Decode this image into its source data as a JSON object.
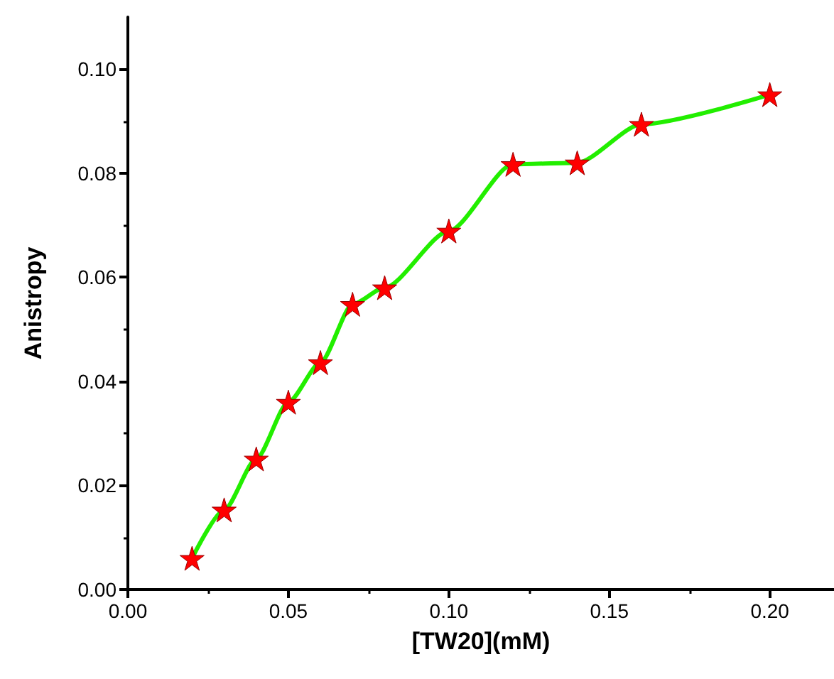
{
  "chart_data": {
    "type": "line",
    "xlabel": "[TW20](mM)",
    "ylabel": "Anistropy",
    "x": [
      0.02,
      0.03,
      0.04,
      0.05,
      0.06,
      0.07,
      0.08,
      0.1,
      0.12,
      0.14,
      0.16,
      0.2
    ],
    "series": [
      {
        "color": "#22ee00",
        "colors": [
          "#ff0000",
          "#ff0000",
          "#ff0000",
          "#ff0000",
          "#ff0000",
          "#ff0000",
          "#ff0000",
          "#ff0000",
          "#ff0000",
          "#ff0000",
          "#ff0000",
          "#ff0000"
        ],
        "values": [
          0.006,
          0.0153,
          0.0251,
          0.036,
          0.0436,
          0.0548,
          0.058,
          0.0689,
          0.0817,
          0.082,
          0.0894,
          0.0951
        ]
      }
    ],
    "marker": "star",
    "line_style": "solid",
    "xlim": [
      0,
      0.22
    ],
    "ylim": [
      0,
      0.11
    ],
    "xticks": [
      "0.00",
      0.05,
      "0.10",
      0.15,
      "0.20"
    ],
    "yticks": [
      "0.00",
      0.02,
      0.04,
      0.06,
      0.08,
      "0.10"
    ],
    "grid": false
  }
}
